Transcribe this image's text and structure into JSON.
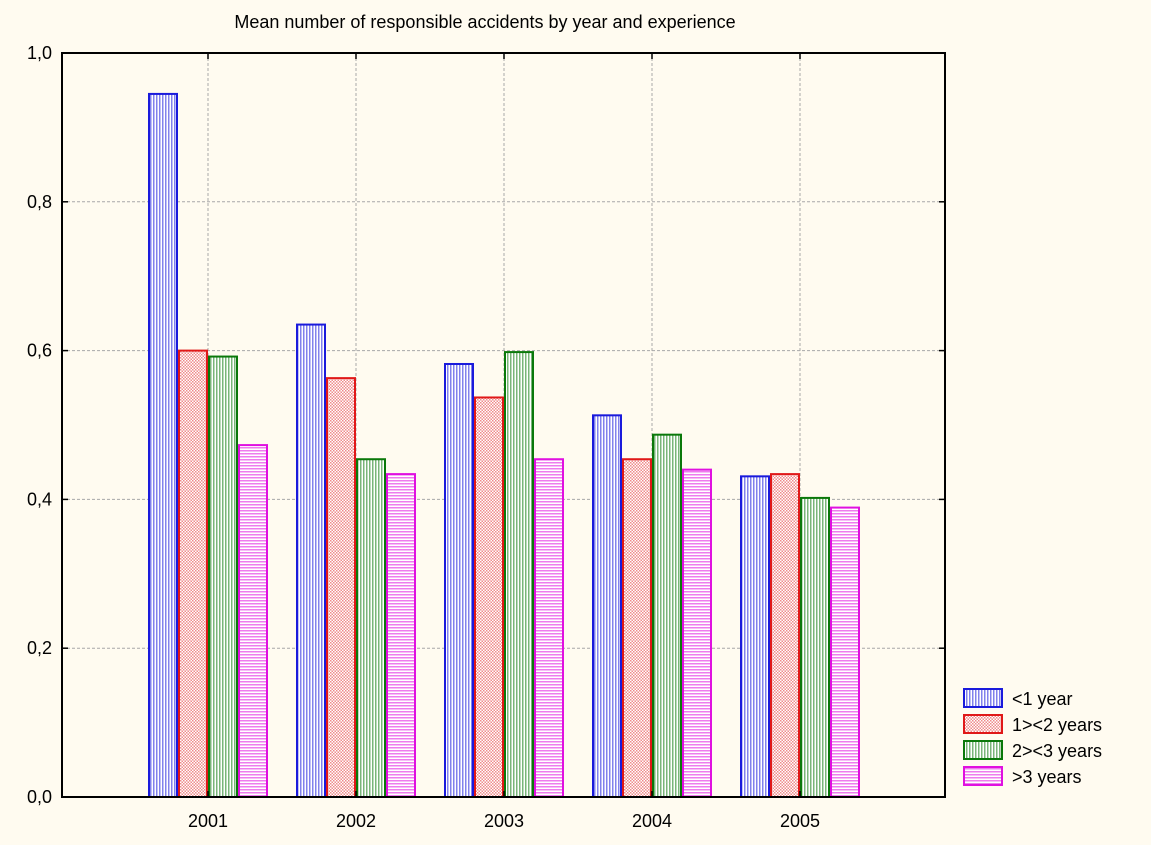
{
  "chart_data": {
    "type": "bar",
    "title": "Mean number of responsible accidents by year and experience",
    "xlabel": "",
    "ylabel": "",
    "categories": [
      "2001",
      "2002",
      "2003",
      "2004",
      "2005"
    ],
    "y_ticks": [
      "0,0",
      "0,2",
      "0,4",
      "0,6",
      "0,8",
      "1,0"
    ],
    "ylim": [
      0,
      1.0
    ],
    "grid": true,
    "legend_position": "bottom-right",
    "series": [
      {
        "name": "<1 year",
        "color": "#1a1adc",
        "fill": "#b8b8f0",
        "pattern": "vertical",
        "values": [
          0.945,
          0.635,
          0.582,
          0.513,
          0.431
        ]
      },
      {
        "name": "1><2 years",
        "color": "#e01818",
        "fill": "#f0c0b8",
        "pattern": "dots",
        "values": [
          0.6,
          0.563,
          0.537,
          0.454,
          0.434
        ]
      },
      {
        "name": "2><3 years",
        "color": "#0a780a",
        "fill": "#b0d8b0",
        "pattern": "vertical",
        "values": [
          0.592,
          0.454,
          0.598,
          0.487,
          0.402
        ]
      },
      {
        "name": ">3 years",
        "color": "#e010e0",
        "fill": "#f6c4f6",
        "pattern": "horizontal",
        "values": [
          0.473,
          0.434,
          0.454,
          0.44,
          0.389
        ]
      }
    ]
  }
}
